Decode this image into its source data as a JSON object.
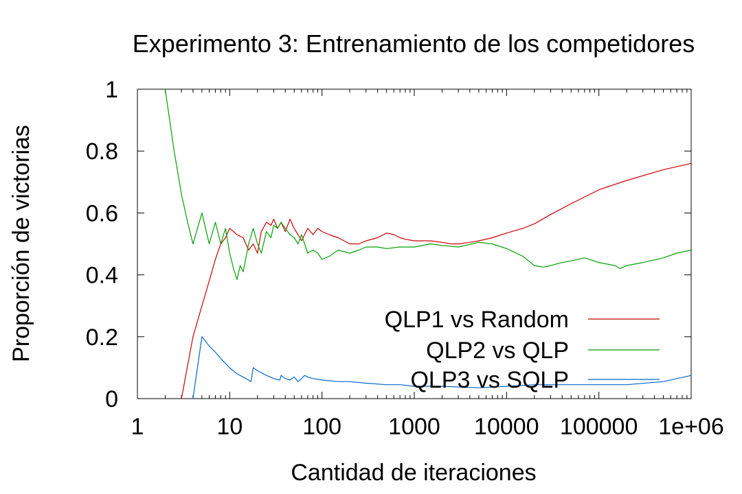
{
  "chart_data": {
    "type": "line",
    "title": "Experimento 3: Entrenamiento de los competidores",
    "xlabel": "Cantidad de iteraciones",
    "ylabel": "Proporción de victorias",
    "x_scale": "log",
    "xlim": [
      1,
      1000000
    ],
    "ylim": [
      0,
      1
    ],
    "x_ticks": [
      {
        "value": 1,
        "label": "1"
      },
      {
        "value": 10,
        "label": "10"
      },
      {
        "value": 100,
        "label": "100"
      },
      {
        "value": 1000,
        "label": "1000"
      },
      {
        "value": 10000,
        "label": "10000"
      },
      {
        "value": 100000,
        "label": "100000"
      },
      {
        "value": 1000000,
        "label": "1e+06"
      }
    ],
    "y_ticks": [
      {
        "value": 0,
        "label": "0"
      },
      {
        "value": 0.2,
        "label": "0.2"
      },
      {
        "value": 0.4,
        "label": "0.4"
      },
      {
        "value": 0.6,
        "label": "0.6"
      },
      {
        "value": 0.8,
        "label": "0.8"
      },
      {
        "value": 1,
        "label": "1"
      }
    ],
    "grid": false,
    "legend_position": "bottom-right",
    "series": [
      {
        "name": "QLP1 vs Random",
        "color": "#cc0000",
        "x": [
          3,
          4,
          5,
          6,
          7,
          8,
          9,
          10,
          12,
          14,
          16,
          18,
          20,
          22,
          25,
          28,
          30,
          33,
          36,
          40,
          45,
          50,
          55,
          60,
          70,
          80,
          90,
          100,
          120,
          150,
          200,
          250,
          300,
          400,
          500,
          600,
          700,
          800,
          1000,
          1500,
          2000,
          2500,
          3000,
          4000,
          5000,
          7000,
          10000,
          15000,
          20000,
          30000,
          50000,
          100000,
          200000,
          500000,
          1000000
        ],
        "y": [
          0.0,
          0.2,
          0.3,
          0.38,
          0.45,
          0.5,
          0.52,
          0.55,
          0.53,
          0.52,
          0.48,
          0.5,
          0.47,
          0.54,
          0.57,
          0.56,
          0.58,
          0.55,
          0.57,
          0.54,
          0.58,
          0.55,
          0.53,
          0.51,
          0.55,
          0.53,
          0.55,
          0.54,
          0.53,
          0.52,
          0.5,
          0.5,
          0.51,
          0.52,
          0.535,
          0.53,
          0.52,
          0.515,
          0.51,
          0.51,
          0.505,
          0.5,
          0.5,
          0.505,
          0.51,
          0.52,
          0.535,
          0.55,
          0.565,
          0.595,
          0.63,
          0.675,
          0.705,
          0.74,
          0.76
        ]
      },
      {
        "name": "QLP2 vs QLP",
        "color": "#00a000",
        "x": [
          2,
          2.5,
          3,
          3.5,
          4,
          5,
          6,
          7,
          8,
          9,
          10,
          11,
          12,
          13,
          14,
          16,
          18,
          20,
          22,
          25,
          28,
          30,
          33,
          36,
          40,
          45,
          50,
          55,
          60,
          70,
          80,
          90,
          100,
          120,
          150,
          200,
          250,
          300,
          400,
          500,
          700,
          1000,
          1500,
          2000,
          3000,
          5000,
          7000,
          10000,
          15000,
          20000,
          25000,
          30000,
          40000,
          50000,
          70000,
          100000,
          150000,
          170000,
          200000,
          300000,
          500000,
          700000,
          1000000
        ],
        "y": [
          1.0,
          0.8,
          0.66,
          0.57,
          0.5,
          0.6,
          0.5,
          0.57,
          0.5,
          0.55,
          0.47,
          0.42,
          0.385,
          0.43,
          0.41,
          0.5,
          0.55,
          0.5,
          0.47,
          0.54,
          0.52,
          0.56,
          0.55,
          0.57,
          0.55,
          0.53,
          0.52,
          0.5,
          0.53,
          0.47,
          0.48,
          0.47,
          0.45,
          0.46,
          0.48,
          0.47,
          0.48,
          0.49,
          0.49,
          0.485,
          0.49,
          0.49,
          0.5,
          0.495,
          0.49,
          0.505,
          0.5,
          0.485,
          0.46,
          0.43,
          0.425,
          0.43,
          0.44,
          0.445,
          0.455,
          0.44,
          0.43,
          0.42,
          0.43,
          0.44,
          0.455,
          0.47,
          0.48
        ]
      },
      {
        "name": "QLP3 vs SQLP",
        "color": "#0066cc",
        "x": [
          4,
          5,
          6,
          7,
          8,
          10,
          12,
          15,
          17,
          18,
          19,
          20,
          25,
          30,
          35,
          36,
          40,
          45,
          50,
          55,
          60,
          65,
          70,
          80,
          100,
          150,
          200,
          300,
          500,
          700,
          1000,
          2000,
          5000,
          10000,
          20000,
          50000,
          100000,
          200000,
          500000,
          1000000
        ],
        "y": [
          0.0,
          0.2,
          0.17,
          0.15,
          0.13,
          0.1,
          0.08,
          0.065,
          0.055,
          0.1,
          0.095,
          0.09,
          0.075,
          0.065,
          0.06,
          0.075,
          0.065,
          0.06,
          0.07,
          0.055,
          0.065,
          0.075,
          0.07,
          0.065,
          0.06,
          0.055,
          0.055,
          0.05,
          0.045,
          0.045,
          0.04,
          0.04,
          0.035,
          0.04,
          0.045,
          0.045,
          0.045,
          0.045,
          0.055,
          0.075
        ]
      }
    ]
  }
}
